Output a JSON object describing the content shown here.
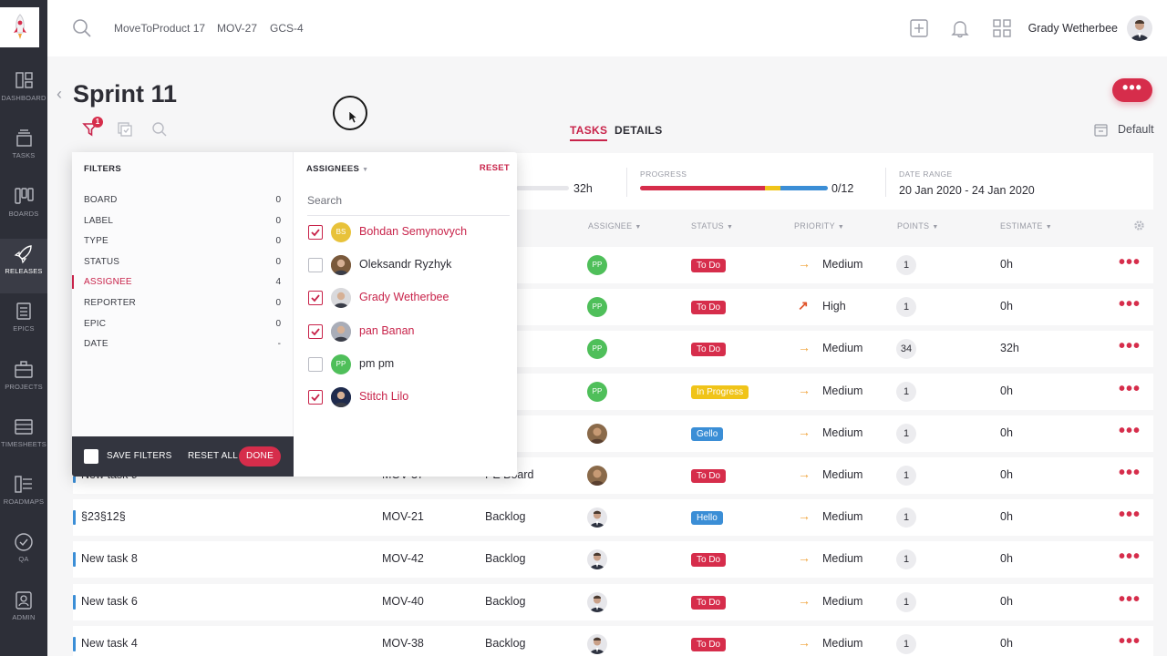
{
  "nav": {
    "items": [
      {
        "label": "DASHBOARD",
        "icon": "dashboard-icon"
      },
      {
        "label": "TASKS",
        "icon": "tasks-icon"
      },
      {
        "label": "BOARDS",
        "icon": "boards-icon"
      },
      {
        "label": "RELEASES",
        "icon": "rocket-icon"
      },
      {
        "label": "EPICS",
        "icon": "epics-icon"
      },
      {
        "label": "PROJECTS",
        "icon": "briefcase-icon"
      },
      {
        "label": "TIMESHEETS",
        "icon": "timesheets-icon"
      },
      {
        "label": "ROADMAPS",
        "icon": "roadmaps-icon"
      },
      {
        "label": "QA",
        "icon": "check-circle-icon"
      },
      {
        "label": "ADMIN",
        "icon": "admin-icon"
      }
    ]
  },
  "topbar": {
    "crumbs": [
      "MoveToProduct 17",
      "MOV-27",
      "GCS-4"
    ],
    "user_name": "Grady Wetherbee"
  },
  "page": {
    "title": "Sprint 11",
    "filter_badge": "1",
    "tabs": [
      "TASKS",
      "DETAILS"
    ],
    "view_label": "Default",
    "more_label": "•••"
  },
  "summary": {
    "hours_value": "32h",
    "progress_label": "PROGRESS",
    "progress_value": "0/12",
    "date_range_label": "DATE RANGE",
    "date_range_value": "20 Jan 2020 - 24 Jan 2020"
  },
  "columns": {
    "assignee": "ASSIGNEE",
    "status": "STATUS",
    "priority": "PRIORITY",
    "points": "POINTS",
    "estimate": "ESTIMATE"
  },
  "rows": [
    {
      "name": "",
      "key": "",
      "board": "ard",
      "status": "To Do",
      "status_color": "#d62d4b",
      "priority": "Medium",
      "points": "1",
      "estimate": "0h",
      "avatar": "PP"
    },
    {
      "name": "",
      "key": "",
      "board": "ard",
      "status": "To Do",
      "status_color": "#d62d4b",
      "priority": "High",
      "points": "1",
      "estimate": "0h",
      "avatar": "PP"
    },
    {
      "name": "",
      "key": "",
      "board": "ard",
      "status": "To Do",
      "status_color": "#d62d4b",
      "priority": "Medium",
      "points": "34",
      "estimate": "32h",
      "avatar": "PP"
    },
    {
      "name": "",
      "key": "",
      "board": "ard",
      "status": "In Progress",
      "status_color": "#f0c419",
      "priority": "Medium",
      "points": "1",
      "estimate": "0h",
      "avatar": "PP"
    },
    {
      "name": "",
      "key": "",
      "board": "ard",
      "status": "Gello",
      "status_color": "#3b8ed6",
      "priority": "Medium",
      "points": "1",
      "estimate": "0h",
      "avatar": "photo"
    },
    {
      "name": "New task 9",
      "key": "MOV-37",
      "board": "PE Board",
      "status": "To Do",
      "status_color": "#d62d4b",
      "priority": "Medium",
      "points": "1",
      "estimate": "0h",
      "avatar": "photo"
    },
    {
      "name": "§23§12§",
      "key": "MOV-21",
      "board": "Backlog",
      "status": "Hello",
      "status_color": "#3b8ed6",
      "priority": "Medium",
      "points": "1",
      "estimate": "0h",
      "avatar": "grady"
    },
    {
      "name": "New task 8",
      "key": "MOV-42",
      "board": "Backlog",
      "status": "To Do",
      "status_color": "#d62d4b",
      "priority": "Medium",
      "points": "1",
      "estimate": "0h",
      "avatar": "grady"
    },
    {
      "name": "New task 6",
      "key": "MOV-40",
      "board": "Backlog",
      "status": "To Do",
      "status_color": "#d62d4b",
      "priority": "Medium",
      "points": "1",
      "estimate": "0h",
      "avatar": "grady"
    },
    {
      "name": "New task 4",
      "key": "MOV-38",
      "board": "Backlog",
      "status": "To Do",
      "status_color": "#d62d4b",
      "priority": "Medium",
      "points": "1",
      "estimate": "0h",
      "avatar": "grady"
    }
  ],
  "filters": {
    "title": "FILTERS",
    "items": [
      {
        "name": "BOARD",
        "count": "0"
      },
      {
        "name": "LABEL",
        "count": "0"
      },
      {
        "name": "TYPE",
        "count": "0"
      },
      {
        "name": "STATUS",
        "count": "0"
      },
      {
        "name": "ASSIGNEE",
        "count": "4"
      },
      {
        "name": "REPORTER",
        "count": "0"
      },
      {
        "name": "EPIC",
        "count": "0"
      },
      {
        "name": "DATE",
        "count": "-"
      }
    ],
    "save_label": "SAVE FILTERS",
    "reset_all_label": "RESET ALL",
    "done_label": "DONE"
  },
  "assignees_panel": {
    "title": "ASSIGNEES",
    "reset_label": "RESET",
    "search_placeholder": "Search",
    "items": [
      {
        "name": "Bohdan Semynovych",
        "checked": true,
        "initials": "BS",
        "color": "#e8c23a"
      },
      {
        "name": "Oleksandr Ryzhyk",
        "checked": false,
        "initials": "",
        "color": "#7a5a3c"
      },
      {
        "name": "Grady Wetherbee",
        "checked": true,
        "initials": "",
        "color": "#d9d9dc"
      },
      {
        "name": "pan Banan",
        "checked": true,
        "initials": "",
        "color": "#a9adb8"
      },
      {
        "name": "pm pm",
        "checked": false,
        "initials": "PP",
        "color": "#4fbf5a"
      },
      {
        "name": "Stitch Lilo",
        "checked": true,
        "initials": "",
        "color": "#1f2b4d"
      }
    ]
  },
  "colors": {
    "accent": "#d62d4b",
    "sidebar": "#2d2f38",
    "status_todo": "#d62d4b",
    "status_in_progress": "#f0c419",
    "status_blue": "#3b8ed6",
    "avatar_green": "#4fbf5a"
  }
}
